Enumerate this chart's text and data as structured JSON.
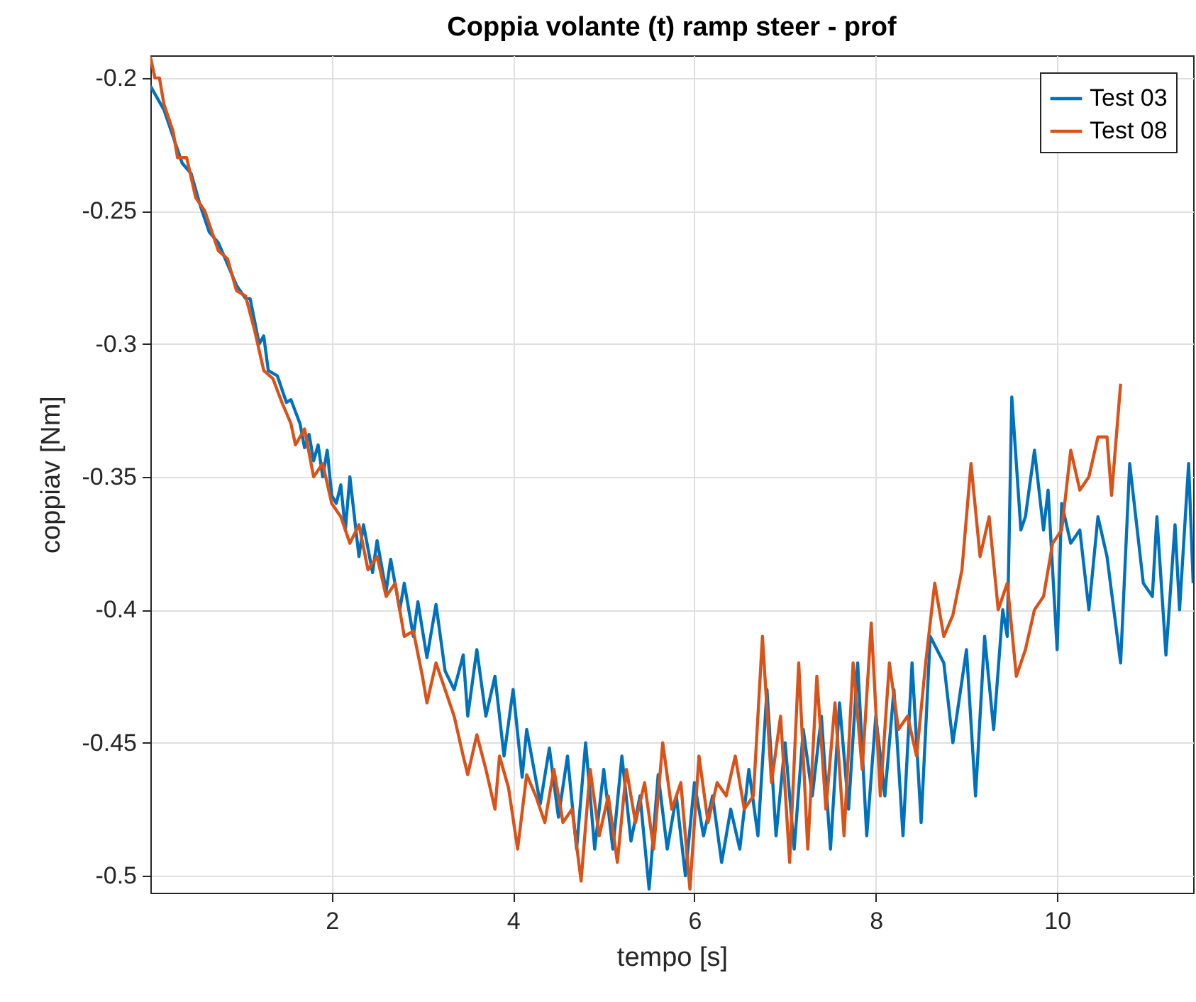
{
  "chart_data": {
    "type": "line",
    "title": "Coppia volante (t) ramp steer - prof",
    "xlabel": "tempo [s]",
    "ylabel": "coppiav [Nm]",
    "xlim": [
      0,
      11.5
    ],
    "ylim": [
      -0.5064,
      -0.1915
    ],
    "xticks": [
      2,
      4,
      6,
      8,
      10
    ],
    "yticks": [
      -0.5,
      -0.45,
      -0.4,
      -0.35,
      -0.3,
      -0.25,
      -0.2
    ],
    "grid": true,
    "legend": "top right",
    "line_style": "solid",
    "series": [
      {
        "name": "Test 03",
        "color": "#0072bd",
        "x": [
          0,
          0.15,
          0.25,
          0.35,
          0.45,
          0.55,
          0.65,
          0.75,
          0.85,
          0.95,
          1.05,
          1.1,
          1.2,
          1.25,
          1.3,
          1.4,
          1.5,
          1.55,
          1.65,
          1.7,
          1.75,
          1.8,
          1.85,
          1.9,
          1.95,
          2.0,
          2.05,
          2.1,
          2.15,
          2.2,
          2.3,
          2.35,
          2.45,
          2.5,
          2.6,
          2.65,
          2.75,
          2.8,
          2.9,
          2.95,
          3.05,
          3.15,
          3.25,
          3.35,
          3.45,
          3.5,
          3.6,
          3.7,
          3.8,
          3.9,
          4.0,
          4.1,
          4.15,
          4.3,
          4.4,
          4.5,
          4.6,
          4.7,
          4.8,
          4.9,
          5.0,
          5.1,
          5.2,
          5.3,
          5.4,
          5.5,
          5.6,
          5.7,
          5.8,
          5.9,
          6.0,
          6.1,
          6.2,
          6.3,
          6.4,
          6.5,
          6.6,
          6.7,
          6.8,
          6.9,
          7.0,
          7.1,
          7.2,
          7.3,
          7.4,
          7.5,
          7.6,
          7.7,
          7.8,
          7.9,
          8.0,
          8.1,
          8.2,
          8.3,
          8.4,
          8.5,
          8.6,
          8.75,
          8.85,
          9.0,
          9.1,
          9.2,
          9.3,
          9.4,
          9.45,
          9.5,
          9.6,
          9.65,
          9.75,
          9.85,
          9.9,
          10.0,
          10.05,
          10.15,
          10.25,
          10.35,
          10.45,
          10.55,
          10.7,
          10.8,
          10.95,
          11.05,
          11.1,
          11.2,
          11.3,
          11.35,
          11.45,
          11.5
        ],
        "values": [
          -0.203,
          -0.212,
          -0.222,
          -0.232,
          -0.236,
          -0.248,
          -0.258,
          -0.262,
          -0.27,
          -0.278,
          -0.283,
          -0.283,
          -0.3,
          -0.297,
          -0.31,
          -0.312,
          -0.322,
          -0.321,
          -0.33,
          -0.339,
          -0.334,
          -0.344,
          -0.338,
          -0.35,
          -0.34,
          -0.357,
          -0.36,
          -0.353,
          -0.37,
          -0.35,
          -0.38,
          -0.368,
          -0.386,
          -0.374,
          -0.393,
          -0.381,
          -0.4,
          -0.39,
          -0.41,
          -0.397,
          -0.418,
          -0.398,
          -0.423,
          -0.43,
          -0.417,
          -0.44,
          -0.415,
          -0.44,
          -0.425,
          -0.455,
          -0.43,
          -0.463,
          -0.445,
          -0.473,
          -0.452,
          -0.478,
          -0.455,
          -0.49,
          -0.45,
          -0.49,
          -0.46,
          -0.49,
          -0.455,
          -0.487,
          -0.47,
          -0.505,
          -0.462,
          -0.49,
          -0.47,
          -0.5,
          -0.465,
          -0.485,
          -0.47,
          -0.495,
          -0.475,
          -0.49,
          -0.46,
          -0.485,
          -0.43,
          -0.485,
          -0.45,
          -0.49,
          -0.445,
          -0.47,
          -0.44,
          -0.49,
          -0.435,
          -0.475,
          -0.42,
          -0.485,
          -0.44,
          -0.47,
          -0.43,
          -0.485,
          -0.42,
          -0.48,
          -0.41,
          -0.42,
          -0.45,
          -0.415,
          -0.47,
          -0.41,
          -0.445,
          -0.4,
          -0.41,
          -0.32,
          -0.37,
          -0.365,
          -0.34,
          -0.37,
          -0.355,
          -0.415,
          -0.36,
          -0.375,
          -0.37,
          -0.4,
          -0.365,
          -0.38,
          -0.42,
          -0.345,
          -0.39,
          -0.395,
          -0.365,
          -0.417,
          -0.368,
          -0.4,
          -0.345,
          -0.39
        ]
      },
      {
        "name": "Test 08",
        "color": "#d95319",
        "x": [
          0,
          0.05,
          0.1,
          0.15,
          0.25,
          0.3,
          0.4,
          0.5,
          0.6,
          0.7,
          0.75,
          0.85,
          0.95,
          1.05,
          1.15,
          1.25,
          1.35,
          1.45,
          1.55,
          1.6,
          1.7,
          1.8,
          1.9,
          2.0,
          2.1,
          2.2,
          2.3,
          2.4,
          2.5,
          2.6,
          2.7,
          2.8,
          2.9,
          3.0,
          3.05,
          3.15,
          3.25,
          3.35,
          3.45,
          3.5,
          3.6,
          3.7,
          3.8,
          3.85,
          3.95,
          4.05,
          4.15,
          4.25,
          4.35,
          4.45,
          4.55,
          4.65,
          4.75,
          4.85,
          4.95,
          5.05,
          5.15,
          5.25,
          5.35,
          5.45,
          5.55,
          5.65,
          5.75,
          5.85,
          5.95,
          6.05,
          6.15,
          6.25,
          6.35,
          6.45,
          6.55,
          6.65,
          6.75,
          6.85,
          6.95,
          7.05,
          7.15,
          7.25,
          7.35,
          7.45,
          7.55,
          7.65,
          7.75,
          7.85,
          7.95,
          8.05,
          8.15,
          8.25,
          8.35,
          8.45,
          8.55,
          8.65,
          8.75,
          8.85,
          8.95,
          9.05,
          9.15,
          9.25,
          9.35,
          9.45,
          9.55,
          9.65,
          9.75,
          9.85,
          9.95,
          10.05,
          10.15,
          10.25,
          10.35,
          10.45,
          10.55,
          10.6,
          10.7
        ],
        "values": [
          -0.192,
          -0.2,
          -0.2,
          -0.21,
          -0.22,
          -0.23,
          -0.23,
          -0.245,
          -0.25,
          -0.26,
          -0.265,
          -0.268,
          -0.28,
          -0.282,
          -0.295,
          -0.31,
          -0.313,
          -0.322,
          -0.33,
          -0.338,
          -0.332,
          -0.35,
          -0.345,
          -0.36,
          -0.365,
          -0.375,
          -0.368,
          -0.385,
          -0.38,
          -0.395,
          -0.39,
          -0.41,
          -0.408,
          -0.425,
          -0.435,
          -0.42,
          -0.43,
          -0.44,
          -0.455,
          -0.462,
          -0.447,
          -0.46,
          -0.475,
          -0.455,
          -0.467,
          -0.49,
          -0.462,
          -0.47,
          -0.48,
          -0.46,
          -0.48,
          -0.475,
          -0.502,
          -0.46,
          -0.485,
          -0.47,
          -0.495,
          -0.46,
          -0.48,
          -0.465,
          -0.49,
          -0.45,
          -0.475,
          -0.465,
          -0.505,
          -0.455,
          -0.48,
          -0.465,
          -0.47,
          -0.455,
          -0.475,
          -0.47,
          -0.41,
          -0.465,
          -0.44,
          -0.495,
          -0.42,
          -0.49,
          -0.425,
          -0.475,
          -0.435,
          -0.485,
          -0.42,
          -0.46,
          -0.405,
          -0.47,
          -0.42,
          -0.445,
          -0.44,
          -0.455,
          -0.42,
          -0.39,
          -0.41,
          -0.402,
          -0.385,
          -0.345,
          -0.38,
          -0.365,
          -0.4,
          -0.39,
          -0.425,
          -0.415,
          -0.4,
          -0.395,
          -0.375,
          -0.37,
          -0.34,
          -0.355,
          -0.35,
          -0.335,
          -0.335,
          -0.357,
          -0.315
        ]
      }
    ]
  }
}
